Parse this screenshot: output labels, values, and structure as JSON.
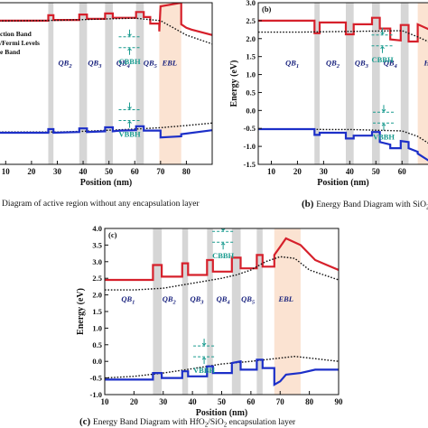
{
  "chart_data": [
    {
      "id": "a",
      "type": "line",
      "panel_label": "",
      "caption_tag": "",
      "caption": "Diagram of active region without any encapsulation layer",
      "xlabel": "Position (nm)",
      "ylabel": "",
      "xlim": [
        5,
        90
      ],
      "ylim": [
        -1.5,
        3.0
      ],
      "xticks": [
        10,
        20,
        30,
        40,
        50,
        60,
        70,
        80
      ],
      "yticks": [],
      "legend": [
        "ction Band",
        "/Fermi Levels",
        "e Band"
      ],
      "legend_placement": "left",
      "gray_bands": [
        [
          26.5,
          28.5
        ],
        [
          38.5,
          41.5
        ],
        [
          48.5,
          51.5
        ],
        [
          60.5,
          63.5
        ]
      ],
      "ebl_band": [
        69.5,
        78
      ],
      "region_labels": [
        {
          "text": "QB2",
          "x": 33
        },
        {
          "text": "QB3",
          "x": 44.5
        },
        {
          "text": "QB4",
          "x": 55.5
        },
        {
          "text": "QB5",
          "x": 66
        },
        {
          "text": "EBL",
          "x": 73.5
        }
      ],
      "annotations": [
        {
          "text": "CBBH",
          "x": 58,
          "y": 1.9
        },
        {
          "text": "VBBH",
          "x": 58,
          "y": -0.13
        }
      ],
      "series": [
        {
          "color": "#d6202b",
          "style": "solid",
          "x": [
            5,
            26.5,
            26.5,
            28.5,
            28.5,
            38.5,
            38.5,
            41.5,
            41.5,
            48.5,
            48.5,
            51.5,
            51.5,
            54.5,
            54.5,
            60.5,
            60.5,
            63.5,
            63.5,
            66,
            66,
            69.5,
            69.5,
            70,
            70,
            78,
            78,
            80,
            82,
            90
          ],
          "y": [
            2.5,
            2.5,
            2.65,
            2.65,
            2.52,
            2.52,
            2.67,
            2.67,
            2.55,
            2.55,
            2.7,
            2.7,
            2.58,
            2.58,
            2.58,
            2.58,
            2.74,
            2.74,
            2.6,
            2.6,
            2.42,
            2.42,
            2.2,
            2.9,
            2.9,
            3.0,
            2.4,
            2.3,
            2.25,
            2.1
          ]
        },
        {
          "color": "#111111",
          "style": "dotted",
          "x": [
            5,
            20,
            30,
            40,
            50,
            60,
            70,
            80,
            90
          ],
          "y": [
            2.49,
            2.5,
            2.51,
            2.53,
            2.55,
            2.57,
            2.5,
            2.1,
            1.85
          ]
        },
        {
          "color": "#111111",
          "style": "dotted",
          "x": [
            5,
            20,
            30,
            40,
            50,
            60,
            70,
            80,
            90
          ],
          "y": [
            -0.6,
            -0.6,
            -0.6,
            -0.58,
            -0.55,
            -0.52,
            -0.48,
            -0.42,
            -0.35
          ]
        },
        {
          "color": "#1c2fc8",
          "style": "solid",
          "x": [
            5,
            26.5,
            26.5,
            28.5,
            28.5,
            38.5,
            38.5,
            41.5,
            41.5,
            48.5,
            48.5,
            51.5,
            51.5,
            54.5,
            54.5,
            60.5,
            60.5,
            63.5,
            63.5,
            70,
            70,
            78,
            78,
            90
          ],
          "y": [
            -0.62,
            -0.62,
            -0.52,
            -0.52,
            -0.62,
            -0.6,
            -0.5,
            -0.5,
            -0.6,
            -0.58,
            -0.47,
            -0.47,
            -0.58,
            -0.56,
            -0.56,
            -0.55,
            -0.44,
            -0.44,
            -0.56,
            -0.56,
            -0.75,
            -0.72,
            -0.66,
            -0.55
          ]
        }
      ]
    },
    {
      "id": "b",
      "type": "line",
      "panel_label": "(b)",
      "caption_tag": "(b)",
      "caption": "Energy Band Diagram with SiO",
      "caption_sub": "2",
      "xlabel": "Position (nm)",
      "ylabel": "Energy (eV)",
      "xlim": [
        5,
        72
      ],
      "ylim": [
        -1.5,
        3.0
      ],
      "xticks": [
        10,
        20,
        30,
        40,
        50,
        60,
        70
      ],
      "yticks": [
        -1.5,
        -1.0,
        -0.5,
        0.0,
        0.5,
        1.0,
        1.5,
        2.0,
        2.5,
        3.0
      ],
      "gray_bands": [
        [
          26.5,
          28.5
        ],
        [
          38.5,
          41.5
        ],
        [
          48.5,
          51.5
        ],
        [
          59.5,
          62.5
        ]
      ],
      "ebl_band": [
        66,
        72
      ],
      "region_labels": [
        {
          "text": "QB1",
          "x": 18
        },
        {
          "text": "QB2",
          "x": 33.5
        },
        {
          "text": "QB3",
          "x": 44.5
        },
        {
          "text": "QB4",
          "x": 55.5
        },
        {
          "text": "H",
          "x": 69.5
        }
      ],
      "annotations": [
        {
          "text": "CBBH",
          "x": 52.5,
          "y": 1.95
        },
        {
          "text": "VBBH",
          "x": 53,
          "y": -0.2
        }
      ],
      "series": [
        {
          "color": "#d6202b",
          "style": "solid",
          "x": [
            5,
            26.5,
            26.5,
            28.5,
            28.5,
            38.5,
            38.5,
            41.5,
            41.5,
            48.5,
            48.5,
            51.5,
            51.5,
            55.5,
            55.5,
            59.5,
            59.5,
            62.5,
            62.5,
            66,
            66,
            72
          ],
          "y": [
            2.5,
            2.5,
            2.15,
            2.15,
            2.45,
            2.45,
            2.12,
            2.12,
            2.4,
            2.4,
            2.58,
            2.58,
            2.28,
            2.28,
            1.98,
            1.95,
            2.38,
            2.38,
            1.92,
            1.92,
            2.4,
            2.2
          ]
        },
        {
          "color": "#111111",
          "style": "dotted",
          "x": [
            5,
            20,
            30,
            40,
            50,
            60,
            66,
            72
          ],
          "y": [
            2.18,
            2.18,
            2.19,
            2.2,
            2.21,
            2.22,
            2.05,
            1.85
          ]
        },
        {
          "color": "#111111",
          "style": "dotted",
          "x": [
            5,
            20,
            30,
            40,
            50,
            60,
            66,
            72
          ],
          "y": [
            -0.52,
            -0.52,
            -0.53,
            -0.53,
            -0.55,
            -0.57,
            -0.72,
            -1.0
          ]
        },
        {
          "color": "#1c2fc8",
          "style": "solid",
          "x": [
            5,
            26.5,
            26.5,
            28.5,
            28.5,
            38.5,
            38.5,
            41.5,
            41.5,
            48.5,
            48.5,
            51.5,
            51.5,
            55.5,
            55.5,
            59.5,
            59.5,
            62.5,
            62.5,
            66,
            66,
            72
          ],
          "y": [
            -0.52,
            -0.52,
            -0.68,
            -0.68,
            -0.62,
            -0.62,
            -0.78,
            -0.78,
            -0.7,
            -0.7,
            -0.6,
            -0.6,
            -0.88,
            -0.95,
            -1.05,
            -1.05,
            -0.85,
            -0.88,
            -1.05,
            -1.15,
            -1.2,
            -1.48
          ]
        }
      ]
    },
    {
      "id": "c",
      "type": "line",
      "panel_label": "(c)",
      "caption_tag": "(c)",
      "caption_parts": [
        "Energy Band Diagram with HfO",
        "2",
        "/SiO",
        "2",
        " encapsulation layer"
      ],
      "xlabel": "Position (nm)",
      "ylabel": "Energy (eV)",
      "xlim": [
        10,
        90
      ],
      "ylim": [
        -1.0,
        4.0
      ],
      "xticks": [
        10,
        20,
        30,
        40,
        50,
        60,
        70,
        80,
        90
      ],
      "yticks": [
        -1.0,
        -0.5,
        0.0,
        0.5,
        1.0,
        1.5,
        2.0,
        2.5,
        3.0,
        3.5,
        4.0
      ],
      "gray_bands": [
        [
          26.5,
          29.5
        ],
        [
          36.5,
          38.5
        ],
        [
          45,
          47
        ],
        [
          53.5,
          56.5
        ],
        [
          62,
          64
        ]
      ],
      "ebl_band": [
        68,
        77
      ],
      "region_labels": [
        {
          "text": "QB1",
          "x": 18
        },
        {
          "text": "QB2",
          "x": 32
        },
        {
          "text": "QB3",
          "x": 41.5
        },
        {
          "text": "QB4",
          "x": 50.5
        },
        {
          "text": "QB5",
          "x": 59
        },
        {
          "text": "EBL",
          "x": 72
        }
      ],
      "annotations": [
        {
          "text": "CBBH",
          "x": 50.5,
          "y": 3.75
        },
        {
          "text": "VBBH",
          "x": 44,
          "y": 0.3
        }
      ],
      "series": [
        {
          "color": "#d6202b",
          "style": "solid",
          "x": [
            10,
            20,
            26.5,
            26.5,
            29.5,
            29.5,
            36.5,
            36.5,
            38.5,
            38.5,
            45,
            45,
            47,
            47,
            53.5,
            53.5,
            56.5,
            56.5,
            62,
            62,
            64,
            64,
            68,
            68,
            70,
            72,
            77,
            82,
            86,
            90
          ],
          "y": [
            2.45,
            2.45,
            2.45,
            2.9,
            2.9,
            2.55,
            2.55,
            2.95,
            2.95,
            2.6,
            2.6,
            3.05,
            3.05,
            2.7,
            2.7,
            3.12,
            3.12,
            2.8,
            2.8,
            3.2,
            3.2,
            2.85,
            2.85,
            3.2,
            3.45,
            3.7,
            3.5,
            3.05,
            2.9,
            2.75
          ]
        },
        {
          "color": "#111111",
          "style": "dotted",
          "x": [
            10,
            20,
            30,
            40,
            50,
            55,
            60,
            65,
            70,
            75,
            80,
            90
          ],
          "y": [
            2.15,
            2.15,
            2.2,
            2.35,
            2.5,
            2.6,
            2.75,
            3.0,
            3.15,
            3.1,
            2.75,
            2.45
          ]
        },
        {
          "color": "#111111",
          "style": "dotted",
          "x": [
            10,
            20,
            30,
            40,
            50,
            60,
            70,
            75,
            80,
            90
          ],
          "y": [
            -0.5,
            -0.45,
            -0.35,
            -0.22,
            -0.08,
            0.0,
            0.1,
            0.15,
            0.1,
            0.0
          ]
        },
        {
          "color": "#1c2fc8",
          "style": "solid",
          "x": [
            10,
            20,
            26.5,
            26.5,
            29.5,
            29.5,
            36.5,
            36.5,
            38.5,
            38.5,
            45,
            45,
            47,
            47,
            53.5,
            53.5,
            56.5,
            56.5,
            62,
            62,
            64,
            64,
            68,
            68,
            70,
            72,
            77,
            82,
            90
          ],
          "y": [
            -0.55,
            -0.55,
            -0.55,
            -0.35,
            -0.35,
            -0.5,
            -0.5,
            -0.3,
            -0.3,
            -0.45,
            -0.45,
            -0.15,
            -0.15,
            -0.35,
            -0.35,
            -0.05,
            0.0,
            -0.25,
            -0.25,
            0.05,
            0.05,
            -0.2,
            -0.2,
            -0.7,
            -0.6,
            -0.4,
            -0.35,
            -0.25,
            -0.25
          ]
        }
      ]
    }
  ]
}
